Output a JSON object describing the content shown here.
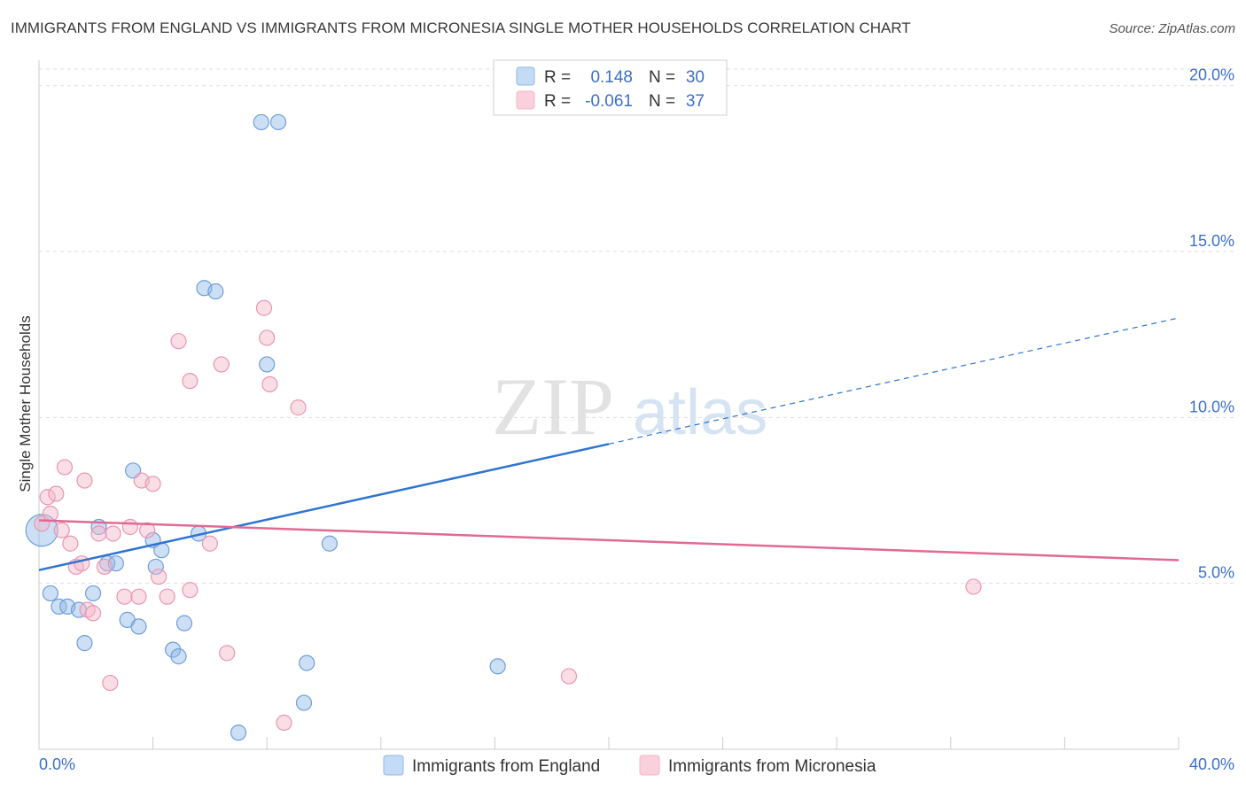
{
  "title": "IMMIGRANTS FROM ENGLAND VS IMMIGRANTS FROM MICRONESIA SINGLE MOTHER HOUSEHOLDS CORRELATION CHART",
  "source": "Source: ZipAtlas.com",
  "watermark": {
    "zip": "ZIP",
    "atlas": "atlas"
  },
  "chart_data": {
    "type": "scatter",
    "ylabel": "Single Mother Households",
    "xlim": [
      0,
      40
    ],
    "ylim": [
      0,
      20.5
    ],
    "x_tick_labels": [
      "0.0%",
      "40.0%"
    ],
    "y_ticks": [
      5,
      10,
      15,
      20
    ],
    "y_tick_labels": [
      "5.0%",
      "10.0%",
      "15.0%",
      "20.0%"
    ],
    "grid": true,
    "legend_position": "top-center",
    "series": [
      {
        "name": "Immigrants from England",
        "color": "#8fb8e8",
        "line_color": "#2f74d0",
        "R_label": "R =",
        "R": "0.148",
        "N_label": "N =",
        "N": "30",
        "trend": {
          "x0": 0,
          "y0": 5.4,
          "x1": 20,
          "y1": 9.2,
          "dash_to_x": 40,
          "dash_to_y": 13.0
        },
        "points": [
          [
            0.1,
            6.6
          ],
          [
            0.4,
            4.7
          ],
          [
            0.7,
            4.3
          ],
          [
            1.0,
            4.3
          ],
          [
            1.4,
            4.2
          ],
          [
            1.6,
            3.2
          ],
          [
            1.9,
            4.7
          ],
          [
            2.1,
            6.7
          ],
          [
            2.4,
            5.6
          ],
          [
            2.7,
            5.6
          ],
          [
            3.1,
            3.9
          ],
          [
            3.3,
            8.4
          ],
          [
            3.5,
            3.7
          ],
          [
            4.0,
            6.3
          ],
          [
            4.1,
            5.5
          ],
          [
            4.3,
            6.0
          ],
          [
            4.7,
            3.0
          ],
          [
            4.9,
            2.8
          ],
          [
            5.1,
            3.8
          ],
          [
            5.6,
            6.5
          ],
          [
            5.8,
            13.9
          ],
          [
            6.2,
            13.8
          ],
          [
            7.0,
            0.5
          ],
          [
            7.8,
            18.9
          ],
          [
            8.0,
            11.6
          ],
          [
            8.4,
            18.9
          ],
          [
            9.3,
            1.4
          ],
          [
            9.4,
            2.6
          ],
          [
            10.2,
            6.2
          ],
          [
            16.1,
            2.5
          ]
        ]
      },
      {
        "name": "Immigrants from Micronesia",
        "color": "#f4b6c8",
        "line_color": "#e06a94",
        "R_label": "R =",
        "R": "-0.061",
        "N_label": "N =",
        "N": "37",
        "trend": {
          "x0": 0,
          "y0": 6.9,
          "x1": 40,
          "y1": 5.7
        },
        "points": [
          [
            0.1,
            6.8
          ],
          [
            0.3,
            7.6
          ],
          [
            0.4,
            7.1
          ],
          [
            0.6,
            7.7
          ],
          [
            0.8,
            6.6
          ],
          [
            0.9,
            8.5
          ],
          [
            1.1,
            6.2
          ],
          [
            1.3,
            5.5
          ],
          [
            1.5,
            5.6
          ],
          [
            1.6,
            8.1
          ],
          [
            1.7,
            4.2
          ],
          [
            1.9,
            4.1
          ],
          [
            2.1,
            6.5
          ],
          [
            2.3,
            5.5
          ],
          [
            2.5,
            2.0
          ],
          [
            2.6,
            6.5
          ],
          [
            3.0,
            4.6
          ],
          [
            3.2,
            6.7
          ],
          [
            3.5,
            4.6
          ],
          [
            3.6,
            8.1
          ],
          [
            3.8,
            6.6
          ],
          [
            4.0,
            8.0
          ],
          [
            4.2,
            5.2
          ],
          [
            4.5,
            4.6
          ],
          [
            4.9,
            12.3
          ],
          [
            5.3,
            11.1
          ],
          [
            5.3,
            4.8
          ],
          [
            6.0,
            6.2
          ],
          [
            6.4,
            11.6
          ],
          [
            6.6,
            2.9
          ],
          [
            7.9,
            13.3
          ],
          [
            8.0,
            12.4
          ],
          [
            8.1,
            11.0
          ],
          [
            8.6,
            0.8
          ],
          [
            9.1,
            10.3
          ],
          [
            18.6,
            2.2
          ],
          [
            32.8,
            4.9
          ]
        ]
      }
    ]
  }
}
